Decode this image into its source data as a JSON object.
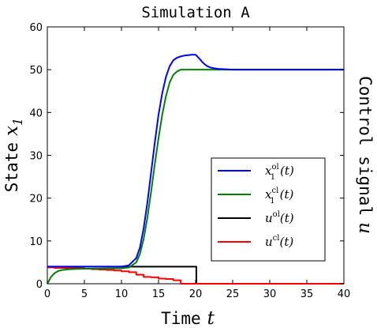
{
  "chart_data": {
    "type": "line",
    "title": "Simulation A",
    "xlabel": "Time",
    "xlabel_var": "t",
    "ylabel": "State",
    "ylabel_var": "x",
    "ylabel_sub": "1",
    "y2label": "Control signal",
    "y2label_var": "u",
    "xlim": [
      0,
      40
    ],
    "ylim": [
      0,
      60
    ],
    "xticks": [
      "0",
      "5",
      "10",
      "15",
      "20",
      "25",
      "30",
      "35",
      "40"
    ],
    "yticks": [
      "0",
      "10",
      "20",
      "30",
      "40",
      "50",
      "60"
    ],
    "legend_position": "lower-right",
    "series": [
      {
        "name": "x_1^ol(t)",
        "label_main": "x",
        "label_sub": "1",
        "label_sup": "ol",
        "label_suffix": "(t)",
        "color": "#0000ff",
        "x": [
          0,
          2,
          4,
          6,
          8,
          10,
          11,
          12,
          12.5,
          13,
          13.5,
          14,
          14.5,
          15,
          15.5,
          16,
          16.5,
          17,
          17.5,
          18,
          18.5,
          19,
          19.5,
          20,
          20.5,
          21,
          21.5,
          22,
          23,
          24,
          25,
          27,
          30,
          35,
          40
        ],
        "y": [
          4,
          4,
          4,
          4,
          4,
          4,
          4.3,
          6,
          8.5,
          13,
          19,
          26,
          33,
          39.5,
          44.5,
          48.3,
          50.8,
          52.2,
          52.8,
          53.1,
          53.3,
          53.4,
          53.5,
          53.5,
          52.6,
          51.6,
          50.9,
          50.5,
          50.2,
          50.1,
          50,
          50,
          50,
          50,
          50
        ]
      },
      {
        "name": "x_1^cl(t)",
        "label_main": "x",
        "label_sub": "1",
        "label_sup": "cl",
        "label_suffix": "(t)",
        "color": "#008000",
        "x": [
          0,
          0.5,
          1,
          1.5,
          2,
          3,
          4,
          5,
          6,
          8,
          10,
          11,
          12,
          12.5,
          13,
          13.5,
          14,
          14.5,
          15,
          15.5,
          16,
          16.5,
          17,
          17.5,
          18,
          19,
          20,
          25,
          30,
          35,
          40
        ],
        "y": [
          0,
          1.6,
          2.5,
          3,
          3.2,
          3.4,
          3.45,
          3.5,
          3.5,
          3.55,
          3.6,
          3.8,
          5,
          7,
          10.5,
          15.5,
          21.5,
          28,
          34,
          39.5,
          43.8,
          47,
          48.8,
          49.6,
          50,
          50,
          50,
          50,
          50,
          50,
          50
        ]
      },
      {
        "name": "u^ol(t)",
        "label_main": "u",
        "label_sup": "ol",
        "label_suffix": "(t)",
        "color": "#000000",
        "step": true,
        "x": [
          0,
          20.1,
          20.1,
          40
        ],
        "y": [
          4,
          4,
          0,
          0
        ]
      },
      {
        "name": "u^cl(t)",
        "label_main": "u",
        "label_sup": "cl",
        "label_suffix": "(t)",
        "color": "#ff0000",
        "step": true,
        "x": [
          0,
          1,
          1,
          2,
          2,
          3,
          3,
          4,
          4,
          5,
          5,
          6,
          6,
          7,
          7,
          8,
          8,
          9,
          9,
          10,
          10,
          11,
          11,
          12,
          12,
          13,
          13,
          14,
          14,
          15,
          15,
          16,
          16,
          17,
          17,
          18,
          18,
          40
        ],
        "y": [
          3.8,
          3.8,
          3.7,
          3.7,
          3.7,
          3.7,
          3.6,
          3.6,
          3.6,
          3.6,
          3.5,
          3.5,
          3.4,
          3.4,
          3.3,
          3.3,
          3.2,
          3.2,
          3.1,
          3.1,
          2.9,
          2.9,
          2.7,
          2.7,
          2.1,
          2.1,
          1.6,
          1.6,
          1.5,
          1.5,
          1.2,
          1.2,
          1.1,
          1.1,
          0.8,
          0.8,
          0,
          0
        ]
      }
    ]
  }
}
